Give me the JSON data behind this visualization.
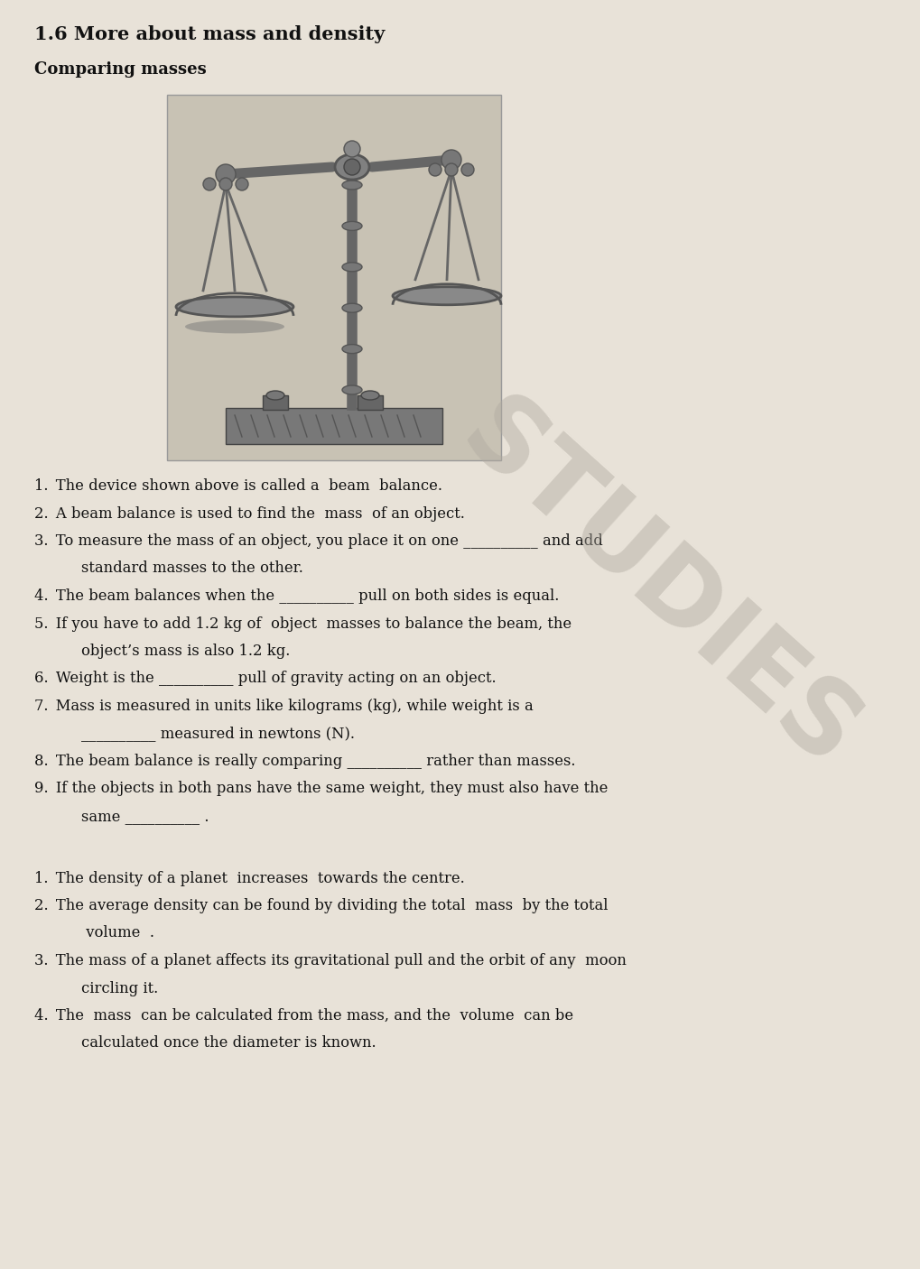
{
  "title": "1.6 More about mass and density",
  "subtitle": "Comparing masses",
  "bg_color": "#e8e2d8",
  "img_bg_color": "#c8c2b4",
  "text_color": "#111111",
  "title_fontsize": 15,
  "subtitle_fontsize": 13,
  "body_fontsize": 11.8,
  "watermark_text": "STUDIES",
  "watermark_color": "#b0aaa0",
  "watermark_alpha": 0.45,
  "section1_lines": [
    {
      "t": "1. The device shown above is called a  beam  balance.",
      "n": 1,
      "ind": false
    },
    {
      "t": "2. A beam balance is used to find the  mass  of an object.",
      "n": 1,
      "ind": false
    },
    {
      "t": "3. To measure the mass of an object, you place it on one __________ and add",
      "n": 1,
      "ind": false
    },
    {
      "t": "standard masses to the other.",
      "n": 1,
      "ind": true
    },
    {
      "t": "4. The beam balances when the __________ pull on both sides is equal.",
      "n": 1,
      "ind": false
    },
    {
      "t": "5. If you have to add 1.2 kg of  object  masses to balance the beam, the",
      "n": 1,
      "ind": false
    },
    {
      "t": "object’s mass is also 1.2 kg.",
      "n": 1,
      "ind": true
    },
    {
      "t": "6. Weight is the __________ pull of gravity acting on an object.",
      "n": 1,
      "ind": false
    },
    {
      "t": "7. Mass is measured in units like kilograms (kg), while weight is a",
      "n": 1,
      "ind": false
    },
    {
      "t": "__________ measured in newtons (N).",
      "n": 1,
      "ind": true
    },
    {
      "t": "8. The beam balance is really comparing __________ rather than masses.",
      "n": 1,
      "ind": false
    },
    {
      "t": "9. If the objects in both pans have the same weight, they must also have the",
      "n": 1,
      "ind": false
    },
    {
      "t": "same __________ .",
      "n": 1,
      "ind": true
    }
  ],
  "section2_lines": [
    {
      "t": "1. The density of a planet  increases  towards the centre.",
      "n": 1,
      "ind": false
    },
    {
      "t": "2. The average density can be found by dividing the total  mass  by the total",
      "n": 1,
      "ind": false
    },
    {
      "t": " volume  .",
      "n": 1,
      "ind": true
    },
    {
      "t": "3. The mass of a planet affects its gravitational pull and the orbit of any  moon",
      "n": 1,
      "ind": false
    },
    {
      "t": "circling it.",
      "n": 1,
      "ind": true
    },
    {
      "t": "4. The  mass  can be calculated from the mass, and the  volume  can be",
      "n": 1,
      "ind": false
    },
    {
      "t": "calculated once the diameter is known.",
      "n": 1,
      "ind": true
    }
  ]
}
